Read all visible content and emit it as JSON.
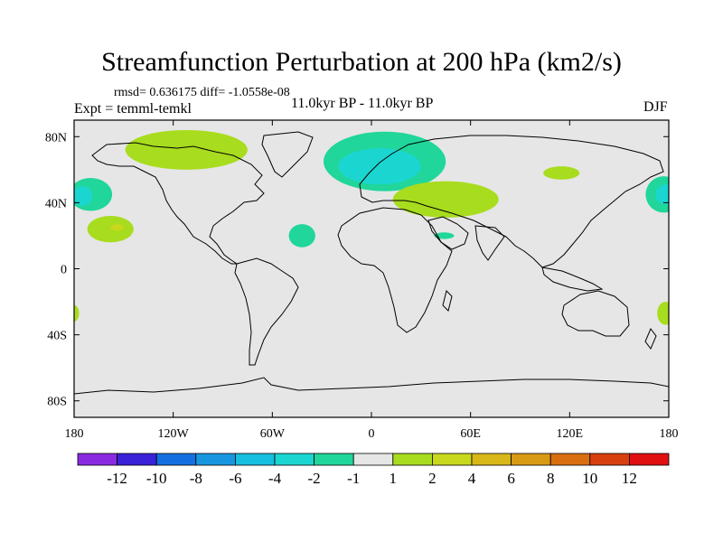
{
  "header": {
    "title": "Streamfunction Perturbation at 200 hPa (km2/s)",
    "stats": "rmsd= 0.636175  diff= -1.0558e-08",
    "expt": "Expt = temml-temkl",
    "period": "11.0kyr BP - 11.0kyr BP",
    "season": "DJF"
  },
  "chart_data": {
    "type": "heatmap",
    "title": "Streamfunction Perturbation at 200 hPa (km2/s)",
    "xlim": [
      -180,
      180
    ],
    "ylim": [
      -90,
      90
    ],
    "x_ticks": [
      {
        "value": -180,
        "label": "180"
      },
      {
        "value": -120,
        "label": "120W"
      },
      {
        "value": -60,
        "label": "60W"
      },
      {
        "value": 0,
        "label": "0"
      },
      {
        "value": 60,
        "label": "60E"
      },
      {
        "value": 120,
        "label": "120E"
      },
      {
        "value": 180,
        "label": "180"
      }
    ],
    "y_ticks": [
      {
        "value": 80,
        "label": "80N"
      },
      {
        "value": 40,
        "label": "40N"
      },
      {
        "value": 0,
        "label": "0"
      },
      {
        "value": -40,
        "label": "40S"
      },
      {
        "value": -80,
        "label": "80S"
      }
    ],
    "colorbar": {
      "colors": [
        "#8a2be2",
        "#3a22d8",
        "#1470e0",
        "#1896e0",
        "#16bee0",
        "#1bd6d0",
        "#20d69a",
        "#e6e6e6",
        "#a8dc1e",
        "#c8d81c",
        "#d8b818",
        "#d89a14",
        "#d86e10",
        "#d84010",
        "#e01010"
      ],
      "labels": [
        "-12",
        "-10",
        "-8",
        "-6",
        "-4",
        "-2",
        "-1",
        "1",
        "2",
        "4",
        "6",
        "8",
        "10",
        "12"
      ]
    },
    "anomalies": [
      {
        "name": "north-america-arctic-positive",
        "lon": -112,
        "lat": 72,
        "rx": 37,
        "ry": 12,
        "level": "2",
        "color": "#a8dc1e"
      },
      {
        "name": "north-atlantic-europe-negative",
        "lon": 8,
        "lat": 65,
        "rx": 37,
        "ry": 18,
        "level": "-1",
        "color": "#20d69a"
      },
      {
        "name": "north-atlantic-europe-negative-core",
        "lon": 5,
        "lat": 62,
        "rx": 25,
        "ry": 11,
        "level": "-2",
        "color": "#1bd6d0"
      },
      {
        "name": "central-asia-positive",
        "lon": 45,
        "lat": 42,
        "rx": 32,
        "ry": 11,
        "level": "2",
        "color": "#a8dc1e"
      },
      {
        "name": "east-asia-positive",
        "lon": 115,
        "lat": 58,
        "rx": 11,
        "ry": 4,
        "level": "2",
        "color": "#a8dc1e"
      },
      {
        "name": "north-pacific-east-negative",
        "lon": -170,
        "lat": 45,
        "rx": 13,
        "ry": 10,
        "level": "-1",
        "color": "#20d69a"
      },
      {
        "name": "north-pacific-east-negative-core",
        "lon": -175,
        "lat": 44,
        "rx": 6,
        "ry": 6,
        "level": "-2",
        "color": "#1bd6d0"
      },
      {
        "name": "north-pacific-west-negative",
        "lon": 177,
        "lat": 45,
        "rx": 11,
        "ry": 11,
        "level": "-1",
        "color": "#20d69a"
      },
      {
        "name": "north-pacific-west-negative-core",
        "lon": 178,
        "lat": 45,
        "rx": 6,
        "ry": 6,
        "level": "-2",
        "color": "#1bd6d0"
      },
      {
        "name": "subtropical-pacific-positive",
        "lon": -158,
        "lat": 24,
        "rx": 14,
        "ry": 8,
        "level": "2",
        "color": "#a8dc1e"
      },
      {
        "name": "subtropical-pacific-positive-core",
        "lon": -154,
        "lat": 25,
        "rx": 4,
        "ry": 2,
        "level": "4",
        "color": "#c8d81c"
      },
      {
        "name": "subtropical-atlantic-negative",
        "lon": -42,
        "lat": 20,
        "rx": 8,
        "ry": 7,
        "level": "-1",
        "color": "#20d69a"
      },
      {
        "name": "arabia-negative",
        "lon": 44,
        "lat": 20,
        "rx": 6,
        "ry": 2,
        "level": "-1",
        "color": "#20d69a"
      },
      {
        "name": "south-pacific-west-positive",
        "lon": 178,
        "lat": -27,
        "rx": 5,
        "ry": 7,
        "level": "2",
        "color": "#a8dc1e"
      },
      {
        "name": "south-pacific-east-positive",
        "lon": -180,
        "lat": -27,
        "rx": 3,
        "ry": 5,
        "level": "2",
        "color": "#a8dc1e"
      }
    ]
  }
}
